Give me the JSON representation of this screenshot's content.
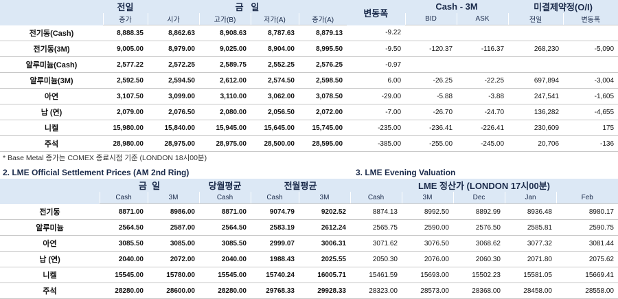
{
  "top_table": {
    "header_row1": [
      "전일",
      "금   일",
      "변동폭",
      "Cash - 3M",
      "미결제약정(O/I)"
    ],
    "header_row2": [
      "종가",
      "시가",
      "고가(B)",
      "저가(A)",
      "종가(A)",
      "BID",
      "ASK",
      "전일",
      "변동폭"
    ],
    "rows": [
      [
        "전기동(Cash)",
        "8,888.35",
        "8,862.63",
        "8,908.63",
        "8,787.63",
        "8,879.13",
        "-9.22",
        null,
        null,
        null,
        null
      ],
      [
        "전기동(3M)",
        "9,005.00",
        "8,979.00",
        "9,025.00",
        "8,904.00",
        "8,995.50",
        "-9.50",
        "-120.37",
        "-116.37",
        "268,230",
        "-5,090"
      ],
      [
        "알루미늄(Cash)",
        "2,577.22",
        "2,572.25",
        "2,589.75",
        "2,552.25",
        "2,576.25",
        "-0.97",
        null,
        null,
        null,
        null
      ],
      [
        "알루미늄(3M)",
        "2,592.50",
        "2,594.50",
        "2,612.00",
        "2,574.50",
        "2,598.50",
        "6.00",
        "-26.25",
        "-22.25",
        "697,894",
        "-3,004"
      ],
      [
        "아연",
        "3,107.50",
        "3,099.00",
        "3,110.00",
        "3,062.00",
        "3,078.50",
        "-29.00",
        "-5.88",
        "-3.88",
        "247,541",
        "-1,605"
      ],
      [
        "납 (연)",
        "2,079.00",
        "2,076.50",
        "2,080.00",
        "2,056.50",
        "2,072.00",
        "-7.00",
        "-26.70",
        "-24.70",
        "136,282",
        "-4,655"
      ],
      [
        "니켈",
        "15,980.00",
        "15,840.00",
        "15,945.00",
        "15,645.00",
        "15,745.00",
        "-235.00",
        "-236.41",
        "-226.41",
        "230,609",
        "175"
      ],
      [
        "주석",
        "28,980.00",
        "28,975.00",
        "28,975.00",
        "28,500.00",
        "28,595.00",
        "-385.00",
        "-255.00",
        "-245.00",
        "20,706",
        "-136"
      ]
    ]
  },
  "footnote": "* Base Metal 종가는 COMEX 종료시점 기준 (LONDON 18시00분)",
  "section2_title": "2. LME Official Settlement Prices (AM 2nd Ring)",
  "section3_title": "3. LME Evening Valuation",
  "bottom_table": {
    "header_row1": [
      "금  일",
      "당월평균",
      "전월평균",
      "LME 정산가 (LONDON 17시00분)"
    ],
    "header_row2": [
      "Cash",
      "3M",
      "Cash",
      "Cash",
      "3M",
      "Cash",
      "3M",
      "Dec",
      "Jan",
      "Feb"
    ],
    "rows": [
      [
        "전기동",
        "8871.00",
        "8986.00",
        "8871.00",
        "9074.79",
        "9202.52",
        "8874.13",
        "8992.50",
        "8892.99",
        "8936.48",
        "8980.17"
      ],
      [
        "알루미늄",
        "2564.50",
        "2587.00",
        "2564.50",
        "2583.19",
        "2612.24",
        "2565.75",
        "2590.00",
        "2576.50",
        "2585.81",
        "2590.75"
      ],
      [
        "아연",
        "3085.50",
        "3085.00",
        "3085.50",
        "2999.07",
        "3006.31",
        "3071.62",
        "3076.50",
        "3068.62",
        "3077.32",
        "3081.44"
      ],
      [
        "납 (연)",
        "2040.00",
        "2072.00",
        "2040.00",
        "1988.43",
        "2025.55",
        "2050.30",
        "2076.00",
        "2060.30",
        "2071.80",
        "2075.62"
      ],
      [
        "니켈",
        "15545.00",
        "15780.00",
        "15545.00",
        "15740.24",
        "16005.71",
        "15461.59",
        "15693.00",
        "15502.23",
        "15581.05",
        "15669.41"
      ],
      [
        "주석",
        "28280.00",
        "28600.00",
        "28280.00",
        "29768.33",
        "29928.33",
        "28323.00",
        "28573.00",
        "28368.00",
        "28458.00",
        "28558.00"
      ]
    ]
  }
}
